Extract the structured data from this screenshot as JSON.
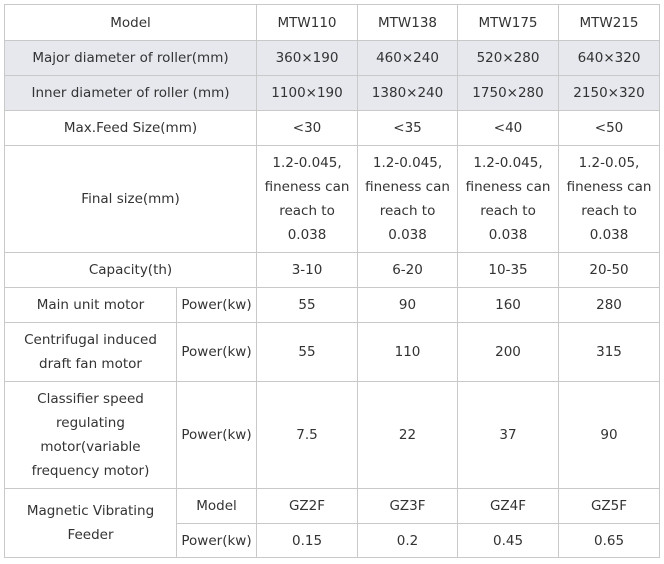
{
  "table": {
    "header": {
      "label": "Model",
      "models": [
        "MTW110",
        "MTW138",
        "MTW175",
        "MTW215"
      ]
    },
    "major_diameter": {
      "label": "Major diameter of roller(mm)",
      "values": [
        "360×190",
        "460×240",
        "520×280",
        "640×320"
      ]
    },
    "inner_diameter": {
      "label": "Inner diameter of roller (mm)",
      "values": [
        "1100×190",
        "1380×240",
        "1750×280",
        "2150×320"
      ]
    },
    "max_feed": {
      "label": "Max.Feed Size(mm)",
      "values": [
        "<30",
        "<35",
        "<40",
        "<50"
      ]
    },
    "final_size": {
      "label": "Final size(mm)",
      "values": [
        [
          "1.2-0.045,",
          "fineness can",
          "reach to",
          "0.038"
        ],
        [
          "1.2-0.045,",
          "fineness can",
          "reach to",
          "0.038"
        ],
        [
          "1.2-0.045,",
          "fineness can",
          "reach to",
          "0.038"
        ],
        [
          "1.2-0.05,",
          "fineness can",
          "reach to",
          "0.038"
        ]
      ]
    },
    "capacity": {
      "label": "Capacity(th)",
      "values": [
        "3-10",
        "6-20",
        "10-35",
        "20-50"
      ]
    },
    "main_motor": {
      "label": "Main unit motor",
      "sub": "Power(kw)",
      "values": [
        "55",
        "90",
        "160",
        "280"
      ]
    },
    "fan_motor": {
      "label_lines": [
        "Centrifugal induced",
        "draft fan motor"
      ],
      "sub": "Power(kw)",
      "values": [
        "55",
        "110",
        "200",
        "315"
      ]
    },
    "classifier_motor": {
      "label_lines": [
        "Classifier speed",
        "regulating",
        "motor(variable",
        "frequency motor)"
      ],
      "sub": "Power(kw)",
      "values": [
        "7.5",
        "22",
        "37",
        "90"
      ]
    },
    "feeder": {
      "label_lines": [
        "Magnetic Vibrating",
        "Feeder"
      ],
      "model_sub": "Model",
      "models": [
        "GZ2F",
        "GZ3F",
        "GZ4F",
        "GZ5F"
      ],
      "power_sub": "Power(kw)",
      "powers": [
        "0.15",
        "0.2",
        "0.45",
        "0.65"
      ]
    }
  }
}
